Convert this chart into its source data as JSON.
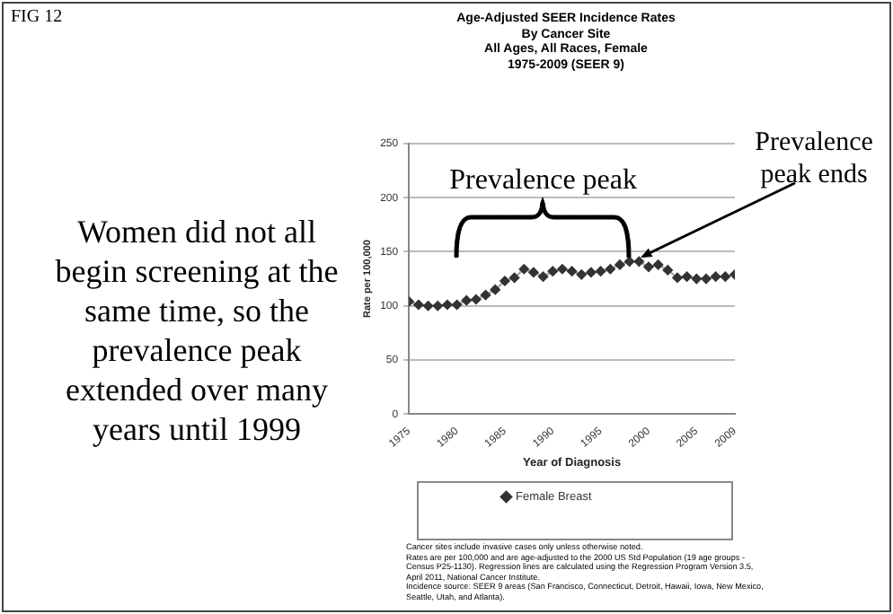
{
  "chart_data": {
    "type": "line",
    "title": "Age-Adjusted SEER Incidence Rates\nBy Cancer Site\nAll Ages, All Races, Female\n1975-2009  (SEER 9)",
    "subtitle": "FIG 12",
    "xlabel": "Year of Diagnosis",
    "ylabel": "Rate per 100,000",
    "x": [
      1975,
      1976,
      1977,
      1978,
      1979,
      1980,
      1981,
      1982,
      1983,
      1984,
      1985,
      1986,
      1987,
      1988,
      1989,
      1990,
      1991,
      1992,
      1993,
      1994,
      1995,
      1996,
      1997,
      1998,
      1999,
      2000,
      2001,
      2002,
      2003,
      2004,
      2005,
      2006,
      2007,
      2008,
      2009
    ],
    "series": [
      {
        "name": "Female Breast",
        "color": "#333333",
        "values": [
          104,
          101,
          100,
          100,
          101,
          101,
          105,
          106,
          110,
          115,
          123,
          126,
          134,
          131,
          127,
          132,
          134,
          132,
          129,
          131,
          132,
          134,
          138,
          141,
          141,
          136,
          138,
          133,
          126,
          127,
          125,
          125,
          127,
          127,
          129
        ]
      }
    ],
    "xlim": [
      1975,
      2009
    ],
    "xticks": [
      1975,
      1980,
      1985,
      1990,
      1995,
      2000,
      2005,
      2009
    ],
    "ylim": [
      0,
      250
    ],
    "yticks": [
      0,
      50,
      100,
      150,
      200,
      250
    ],
    "grid": "y",
    "legend": "bottom",
    "marker": "diamond",
    "line_style": "solid",
    "annotations": [
      "Prevalence peak",
      "Prevalence peak ends",
      "Women did not all begin screening at the same time, so the prevalence peak extended over many years until 1999",
      "Cancer sites include invasive cases only unless otherwise noted.",
      "Rates are per 100,000 and are age-adjusted to the 2000 US Std Population (19 age groups - Census P25-1130). Regression lines are calculated using the Regression Program Version 3.5, April 2011, National Cancer Institute.",
      "Incidence source: SEER 9 areas (San Francisco, Connecticut, Detroit, Hawaii, Iowa, New Mexico, Seattle, Utah, and Atlanta)."
    ]
  }
}
